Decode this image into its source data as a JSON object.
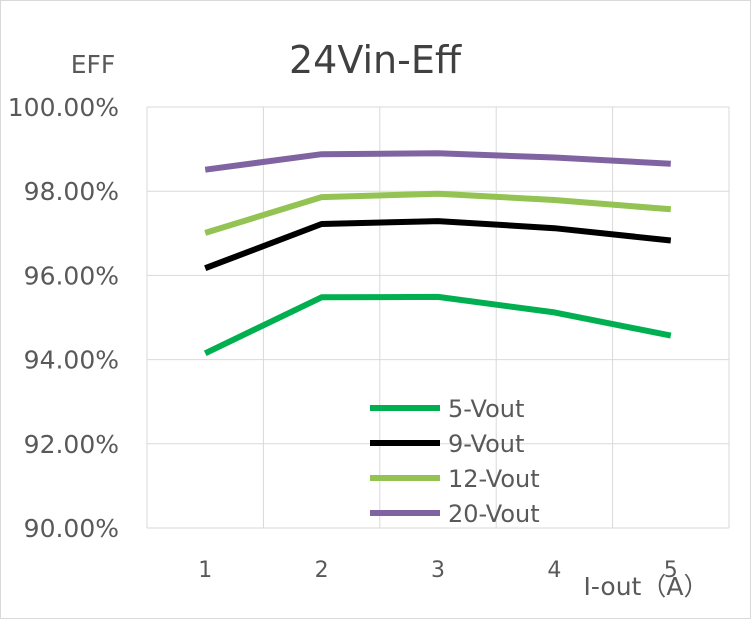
{
  "chart_data": {
    "type": "line",
    "title": "24Vin-Eff",
    "xlabel": "I-out（A）",
    "ylabel": "EFF",
    "categories": [
      "1",
      "2",
      "3",
      "4",
      "5"
    ],
    "ylim": [
      0.9,
      1.0
    ],
    "yticks": [
      "90.00%",
      "92.00%",
      "94.00%",
      "96.00%",
      "98.00%",
      "100.00%"
    ],
    "grid": true,
    "legend_position": "bottom-center inside plot",
    "series": [
      {
        "name": "5-Vout",
        "color": "#00b050",
        "values": [
          0.9415,
          0.9548,
          0.9549,
          0.9512,
          0.9457
        ]
      },
      {
        "name": "9-Vout",
        "color": "#000000",
        "values": [
          0.9617,
          0.9722,
          0.9729,
          0.9712,
          0.9683
        ]
      },
      {
        "name": "12-Vout",
        "color": "#92c353",
        "values": [
          0.9701,
          0.9786,
          0.9794,
          0.9779,
          0.9757
        ]
      },
      {
        "name": "20-Vout",
        "color": "#8064a2",
        "values": [
          0.9851,
          0.9888,
          0.989,
          0.988,
          0.9865
        ]
      }
    ]
  }
}
